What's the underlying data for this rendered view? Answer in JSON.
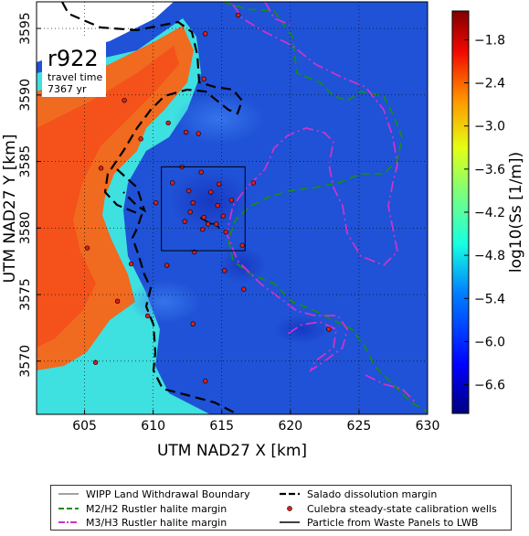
{
  "map": {
    "run_label": "r922",
    "travel_time_label": "travel time",
    "travel_time_value": "7367 yr",
    "xlabel": "UTM NAD27 X [km]",
    "ylabel": "UTM NAD27 Y [km]",
    "x_ticks": [
      "605",
      "610",
      "615",
      "620",
      "625",
      "630"
    ],
    "y_ticks": [
      "3570",
      "3575",
      "3580",
      "3585",
      "3590",
      "3595"
    ],
    "x_tick_values": [
      605,
      610,
      615,
      620,
      625,
      630
    ],
    "y_tick_values": [
      3570,
      3575,
      3580,
      3585,
      3590,
      3595
    ],
    "xlim": [
      601.5,
      630
    ],
    "ylim": [
      3566,
      3597
    ],
    "colorbar_label": "log10(Ss [1/m])",
    "colorbar_ticks": [
      "−1.8",
      "−2.4",
      "−3.0",
      "−3.6",
      "−4.2",
      "−4.8",
      "−5.4",
      "−6.0",
      "−6.6"
    ],
    "colorbar_tick_values": [
      -1.8,
      -2.4,
      -3.0,
      -3.6,
      -4.2,
      -4.8,
      -5.4,
      -6.0,
      -6.6
    ],
    "colorbar_range": [
      -7.0,
      -1.4
    ],
    "colors": {
      "field_low": "#1f52d6",
      "field_mid": "#3fe0e0",
      "field_high": "#f06a1f",
      "m2h2_margin": "#1a8a1a",
      "m3h3_margin": "#cc33cc",
      "salado_margin": "#000000",
      "wells": "#d62020"
    },
    "wipp_boundary_km": {
      "x": [
        610.6,
        616.7
      ],
      "y": [
        3578.3,
        3584.6
      ]
    },
    "wells_km": [
      [
        616.2,
        3596.0
      ],
      [
        613.8,
        3594.6
      ],
      [
        613.7,
        3591.2
      ],
      [
        607.9,
        3589.6
      ],
      [
        611.1,
        3587.9
      ],
      [
        612.4,
        3587.2
      ],
      [
        609.1,
        3586.7
      ],
      [
        613.3,
        3587.1
      ],
      [
        606.2,
        3584.5
      ],
      [
        612.1,
        3584.6
      ],
      [
        613.5,
        3584.2
      ],
      [
        611.4,
        3583.4
      ],
      [
        614.8,
        3583.3
      ],
      [
        617.3,
        3583.4
      ],
      [
        612.6,
        3582.8
      ],
      [
        614.2,
        3582.7
      ],
      [
        612.9,
        3581.9
      ],
      [
        614.7,
        3581.7
      ],
      [
        615.7,
        3582.1
      ],
      [
        610.2,
        3581.9
      ],
      [
        612.7,
        3581.2
      ],
      [
        613.7,
        3580.8
      ],
      [
        615.1,
        3580.9
      ],
      [
        614.6,
        3580.3
      ],
      [
        612.3,
        3580.5
      ],
      [
        613.6,
        3579.9
      ],
      [
        615.3,
        3579.7
      ],
      [
        614.0,
        3580.3
      ],
      [
        613.0,
        3578.2
      ],
      [
        616.5,
        3578.7
      ],
      [
        611.0,
        3577.2
      ],
      [
        605.2,
        3578.5
      ],
      [
        608.4,
        3577.3
      ],
      [
        615.2,
        3576.8
      ],
      [
        616.6,
        3575.4
      ],
      [
        607.4,
        3574.5
      ],
      [
        609.6,
        3573.4
      ],
      [
        612.9,
        3572.8
      ],
      [
        622.8,
        3572.4
      ],
      [
        605.8,
        3569.9
      ],
      [
        613.8,
        3568.5
      ]
    ]
  },
  "legend": {
    "wipp_boundary": "WIPP Land Withdrawal Boundary",
    "m2h2": "M2/H2 Rustler halite margin",
    "m3h3": "M3/H3 Rustler halite margin",
    "salado": "Salado dissolution margin",
    "wells": "Culebra steady-state calibration wells",
    "particle": "Particle from Waste Panels to LWB"
  }
}
